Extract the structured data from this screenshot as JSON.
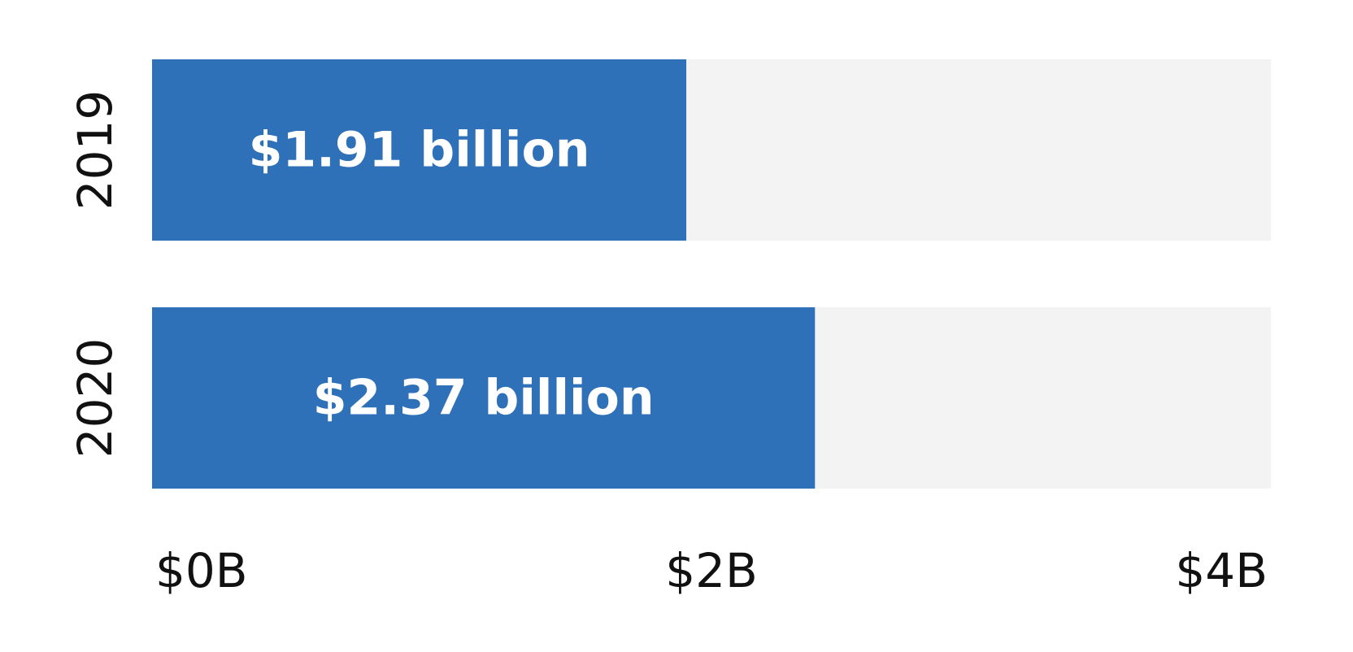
{
  "chart_data": {
    "type": "bar",
    "orientation": "horizontal",
    "categories": [
      "2019",
      "2020"
    ],
    "values": [
      1.91,
      2.37
    ],
    "value_labels": [
      "$1.91 billion",
      "$2.37 billion"
    ],
    "x_ticks": [
      {
        "value": 0,
        "label": "$0B"
      },
      {
        "value": 2,
        "label": "$2B"
      },
      {
        "value": 4,
        "label": "$4B"
      }
    ],
    "xlim": [
      0,
      4
    ],
    "grid": false,
    "colors": {
      "bar": "#2f71b8",
      "track": "#f3f3f3",
      "value_text": "#ffffff",
      "axis_text": "#111111"
    }
  }
}
